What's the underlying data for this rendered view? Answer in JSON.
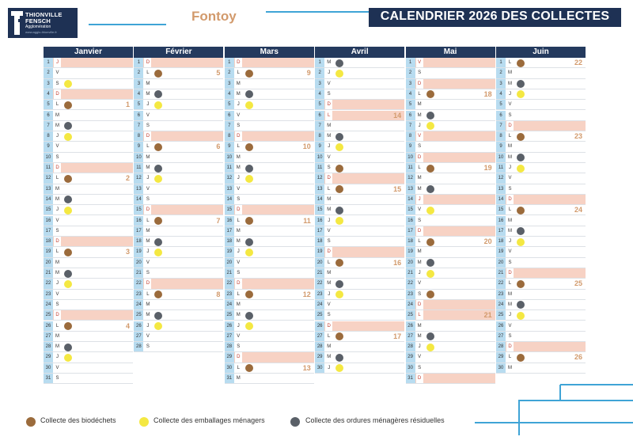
{
  "header": {
    "logo_line1": "THIONVILLE",
    "logo_line2": "FENSCH",
    "logo_line3": "Agglomération",
    "logo_line4": "www.agglo-thionville.fr",
    "town": "Fontoy",
    "banner_title": "CALENDRIER 2026 DES COLLECTES"
  },
  "colors": {
    "brand_navy": "#1e3154",
    "weekend_row": "#f7d2c4",
    "day_number_column": "#b8dcf0",
    "biodechets": "#9b6b3c",
    "emballages": "#f4e842",
    "ordures": "#5a6068",
    "week_number": "#d29a6c"
  },
  "legend": [
    {
      "code": "bio",
      "label": "Collecte des biodéchets"
    },
    {
      "code": "emb",
      "label": "Collecte des emballages ménagers"
    },
    {
      "code": "om",
      "label": "Collecte des ordures ménagères résiduelles"
    }
  ],
  "months": [
    {
      "name": "Janvier",
      "days": [
        {
          "n": "1",
          "d": "J",
          "we": true
        },
        {
          "n": "2",
          "d": "V"
        },
        {
          "n": "3",
          "d": "S",
          "c": "emb"
        },
        {
          "n": "4",
          "d": "D",
          "we": true
        },
        {
          "n": "5",
          "d": "L",
          "c": "bio",
          "wk": "1"
        },
        {
          "n": "6",
          "d": "M"
        },
        {
          "n": "7",
          "d": "M",
          "c": "om"
        },
        {
          "n": "8",
          "d": "J",
          "c": "emb"
        },
        {
          "n": "9",
          "d": "V"
        },
        {
          "n": "10",
          "d": "S"
        },
        {
          "n": "11",
          "d": "D",
          "we": true
        },
        {
          "n": "12",
          "d": "L",
          "c": "bio",
          "wk": "2"
        },
        {
          "n": "13",
          "d": "M"
        },
        {
          "n": "14",
          "d": "M",
          "c": "om"
        },
        {
          "n": "15",
          "d": "J",
          "c": "emb"
        },
        {
          "n": "16",
          "d": "V"
        },
        {
          "n": "17",
          "d": "S"
        },
        {
          "n": "18",
          "d": "D",
          "we": true
        },
        {
          "n": "19",
          "d": "L",
          "c": "bio",
          "wk": "3"
        },
        {
          "n": "20",
          "d": "M"
        },
        {
          "n": "21",
          "d": "M",
          "c": "om"
        },
        {
          "n": "22",
          "d": "J",
          "c": "emb"
        },
        {
          "n": "23",
          "d": "V"
        },
        {
          "n": "24",
          "d": "S"
        },
        {
          "n": "25",
          "d": "D",
          "we": true
        },
        {
          "n": "26",
          "d": "L",
          "c": "bio",
          "wk": "4"
        },
        {
          "n": "27",
          "d": "M"
        },
        {
          "n": "28",
          "d": "M",
          "c": "om"
        },
        {
          "n": "29",
          "d": "J",
          "c": "emb"
        },
        {
          "n": "30",
          "d": "V"
        },
        {
          "n": "31",
          "d": "S"
        }
      ]
    },
    {
      "name": "Février",
      "days": [
        {
          "n": "1",
          "d": "D",
          "we": true
        },
        {
          "n": "2",
          "d": "L",
          "c": "bio",
          "wk": "5"
        },
        {
          "n": "3",
          "d": "M"
        },
        {
          "n": "4",
          "d": "M",
          "c": "om"
        },
        {
          "n": "5",
          "d": "J",
          "c": "emb"
        },
        {
          "n": "6",
          "d": "V"
        },
        {
          "n": "7",
          "d": "S"
        },
        {
          "n": "8",
          "d": "D",
          "we": true
        },
        {
          "n": "9",
          "d": "L",
          "c": "bio",
          "wk": "6"
        },
        {
          "n": "10",
          "d": "M"
        },
        {
          "n": "11",
          "d": "M",
          "c": "om"
        },
        {
          "n": "12",
          "d": "J",
          "c": "emb"
        },
        {
          "n": "13",
          "d": "V"
        },
        {
          "n": "14",
          "d": "S"
        },
        {
          "n": "15",
          "d": "D",
          "we": true
        },
        {
          "n": "16",
          "d": "L",
          "c": "bio",
          "wk": "7"
        },
        {
          "n": "17",
          "d": "M"
        },
        {
          "n": "18",
          "d": "M",
          "c": "om"
        },
        {
          "n": "19",
          "d": "J",
          "c": "emb"
        },
        {
          "n": "20",
          "d": "V"
        },
        {
          "n": "21",
          "d": "S"
        },
        {
          "n": "22",
          "d": "D",
          "we": true
        },
        {
          "n": "23",
          "d": "L",
          "c": "bio",
          "wk": "8"
        },
        {
          "n": "24",
          "d": "M"
        },
        {
          "n": "25",
          "d": "M",
          "c": "om"
        },
        {
          "n": "26",
          "d": "J",
          "c": "emb"
        },
        {
          "n": "27",
          "d": "V"
        },
        {
          "n": "28",
          "d": "S"
        }
      ]
    },
    {
      "name": "Mars",
      "days": [
        {
          "n": "1",
          "d": "D",
          "we": true
        },
        {
          "n": "2",
          "d": "L",
          "c": "bio",
          "wk": "9"
        },
        {
          "n": "3",
          "d": "M"
        },
        {
          "n": "4",
          "d": "M",
          "c": "om"
        },
        {
          "n": "5",
          "d": "J",
          "c": "emb"
        },
        {
          "n": "6",
          "d": "V"
        },
        {
          "n": "7",
          "d": "S"
        },
        {
          "n": "8",
          "d": "D",
          "we": true
        },
        {
          "n": "9",
          "d": "L",
          "c": "bio",
          "wk": "10"
        },
        {
          "n": "10",
          "d": "M"
        },
        {
          "n": "11",
          "d": "M",
          "c": "om"
        },
        {
          "n": "12",
          "d": "J",
          "c": "emb"
        },
        {
          "n": "13",
          "d": "V"
        },
        {
          "n": "14",
          "d": "S"
        },
        {
          "n": "15",
          "d": "D",
          "we": true
        },
        {
          "n": "16",
          "d": "L",
          "c": "bio",
          "wk": "11"
        },
        {
          "n": "17",
          "d": "M"
        },
        {
          "n": "18",
          "d": "M",
          "c": "om"
        },
        {
          "n": "19",
          "d": "J",
          "c": "emb"
        },
        {
          "n": "20",
          "d": "V"
        },
        {
          "n": "21",
          "d": "S"
        },
        {
          "n": "22",
          "d": "D",
          "we": true
        },
        {
          "n": "23",
          "d": "L",
          "c": "bio",
          "wk": "12"
        },
        {
          "n": "24",
          "d": "M"
        },
        {
          "n": "25",
          "d": "M",
          "c": "om"
        },
        {
          "n": "26",
          "d": "J",
          "c": "emb"
        },
        {
          "n": "27",
          "d": "V"
        },
        {
          "n": "28",
          "d": "S"
        },
        {
          "n": "29",
          "d": "D",
          "we": true
        },
        {
          "n": "30",
          "d": "L",
          "c": "bio",
          "wk": "13"
        },
        {
          "n": "31",
          "d": "M"
        }
      ]
    },
    {
      "name": "Avril",
      "days": [
        {
          "n": "1",
          "d": "M",
          "c": "om"
        },
        {
          "n": "2",
          "d": "J",
          "c": "emb"
        },
        {
          "n": "3",
          "d": "V"
        },
        {
          "n": "4",
          "d": "S"
        },
        {
          "n": "5",
          "d": "D",
          "we": true
        },
        {
          "n": "6",
          "d": "L",
          "we": true,
          "wk": "14"
        },
        {
          "n": "7",
          "d": "M"
        },
        {
          "n": "8",
          "d": "M",
          "c": "om"
        },
        {
          "n": "9",
          "d": "J",
          "c": "emb"
        },
        {
          "n": "10",
          "d": "V"
        },
        {
          "n": "11",
          "d": "S",
          "c": "bio"
        },
        {
          "n": "12",
          "d": "D",
          "we": true
        },
        {
          "n": "13",
          "d": "L",
          "c": "bio",
          "wk": "15"
        },
        {
          "n": "14",
          "d": "M"
        },
        {
          "n": "15",
          "d": "M",
          "c": "om"
        },
        {
          "n": "16",
          "d": "J",
          "c": "emb"
        },
        {
          "n": "17",
          "d": "V"
        },
        {
          "n": "18",
          "d": "S"
        },
        {
          "n": "19",
          "d": "D",
          "we": true
        },
        {
          "n": "20",
          "d": "L",
          "c": "bio",
          "wk": "16"
        },
        {
          "n": "21",
          "d": "M"
        },
        {
          "n": "22",
          "d": "M",
          "c": "om"
        },
        {
          "n": "23",
          "d": "J",
          "c": "emb"
        },
        {
          "n": "24",
          "d": "V"
        },
        {
          "n": "25",
          "d": "S"
        },
        {
          "n": "26",
          "d": "D",
          "we": true
        },
        {
          "n": "27",
          "d": "L",
          "c": "bio",
          "wk": "17"
        },
        {
          "n": "28",
          "d": "M"
        },
        {
          "n": "29",
          "d": "M",
          "c": "om"
        },
        {
          "n": "30",
          "d": "J",
          "c": "emb"
        }
      ]
    },
    {
      "name": "Mai",
      "days": [
        {
          "n": "1",
          "d": "V",
          "we": true
        },
        {
          "n": "2",
          "d": "S"
        },
        {
          "n": "3",
          "d": "D",
          "we": true
        },
        {
          "n": "4",
          "d": "L",
          "c": "bio",
          "wk": "18"
        },
        {
          "n": "5",
          "d": "M"
        },
        {
          "n": "6",
          "d": "M",
          "c": "om"
        },
        {
          "n": "7",
          "d": "J",
          "c": "emb"
        },
        {
          "n": "8",
          "d": "V",
          "we": true
        },
        {
          "n": "9",
          "d": "S"
        },
        {
          "n": "10",
          "d": "D",
          "we": true
        },
        {
          "n": "11",
          "d": "L",
          "c": "bio",
          "wk": "19"
        },
        {
          "n": "12",
          "d": "M"
        },
        {
          "n": "13",
          "d": "M",
          "c": "om"
        },
        {
          "n": "14",
          "d": "J",
          "we": true
        },
        {
          "n": "15",
          "d": "V",
          "c": "emb"
        },
        {
          "n": "16",
          "d": "S"
        },
        {
          "n": "17",
          "d": "D",
          "we": true
        },
        {
          "n": "18",
          "d": "L",
          "c": "bio",
          "wk": "20"
        },
        {
          "n": "19",
          "d": "M"
        },
        {
          "n": "20",
          "d": "M",
          "c": "om"
        },
        {
          "n": "21",
          "d": "J",
          "c": "emb"
        },
        {
          "n": "22",
          "d": "V"
        },
        {
          "n": "23",
          "d": "S",
          "c": "bio"
        },
        {
          "n": "24",
          "d": "D",
          "we": true
        },
        {
          "n": "25",
          "d": "L",
          "we": true,
          "wk": "21"
        },
        {
          "n": "26",
          "d": "M"
        },
        {
          "n": "27",
          "d": "M",
          "c": "om"
        },
        {
          "n": "28",
          "d": "J",
          "c": "emb"
        },
        {
          "n": "29",
          "d": "V"
        },
        {
          "n": "30",
          "d": "S"
        },
        {
          "n": "31",
          "d": "D",
          "we": true
        }
      ]
    },
    {
      "name": "Juin",
      "days": [
        {
          "n": "1",
          "d": "L",
          "c": "bio",
          "wk": "22"
        },
        {
          "n": "2",
          "d": "M"
        },
        {
          "n": "3",
          "d": "M",
          "c": "om"
        },
        {
          "n": "4",
          "d": "J",
          "c": "emb"
        },
        {
          "n": "5",
          "d": "V"
        },
        {
          "n": "6",
          "d": "S"
        },
        {
          "n": "7",
          "d": "D",
          "we": true
        },
        {
          "n": "8",
          "d": "L",
          "c": "bio",
          "wk": "23"
        },
        {
          "n": "9",
          "d": "M"
        },
        {
          "n": "10",
          "d": "M",
          "c": "om"
        },
        {
          "n": "11",
          "d": "J",
          "c": "emb"
        },
        {
          "n": "12",
          "d": "V"
        },
        {
          "n": "13",
          "d": "S"
        },
        {
          "n": "14",
          "d": "D",
          "we": true
        },
        {
          "n": "15",
          "d": "L",
          "c": "bio",
          "wk": "24"
        },
        {
          "n": "16",
          "d": "M"
        },
        {
          "n": "17",
          "d": "M",
          "c": "om"
        },
        {
          "n": "18",
          "d": "J",
          "c": "emb"
        },
        {
          "n": "19",
          "d": "V"
        },
        {
          "n": "20",
          "d": "S"
        },
        {
          "n": "21",
          "d": "D",
          "we": true
        },
        {
          "n": "22",
          "d": "L",
          "c": "bio",
          "wk": "25"
        },
        {
          "n": "23",
          "d": "M"
        },
        {
          "n": "24",
          "d": "M",
          "c": "om"
        },
        {
          "n": "25",
          "d": "J",
          "c": "emb"
        },
        {
          "n": "26",
          "d": "V"
        },
        {
          "n": "27",
          "d": "S"
        },
        {
          "n": "28",
          "d": "D",
          "we": true
        },
        {
          "n": "29",
          "d": "L",
          "c": "bio",
          "wk": "26"
        },
        {
          "n": "30",
          "d": "M"
        }
      ]
    }
  ]
}
